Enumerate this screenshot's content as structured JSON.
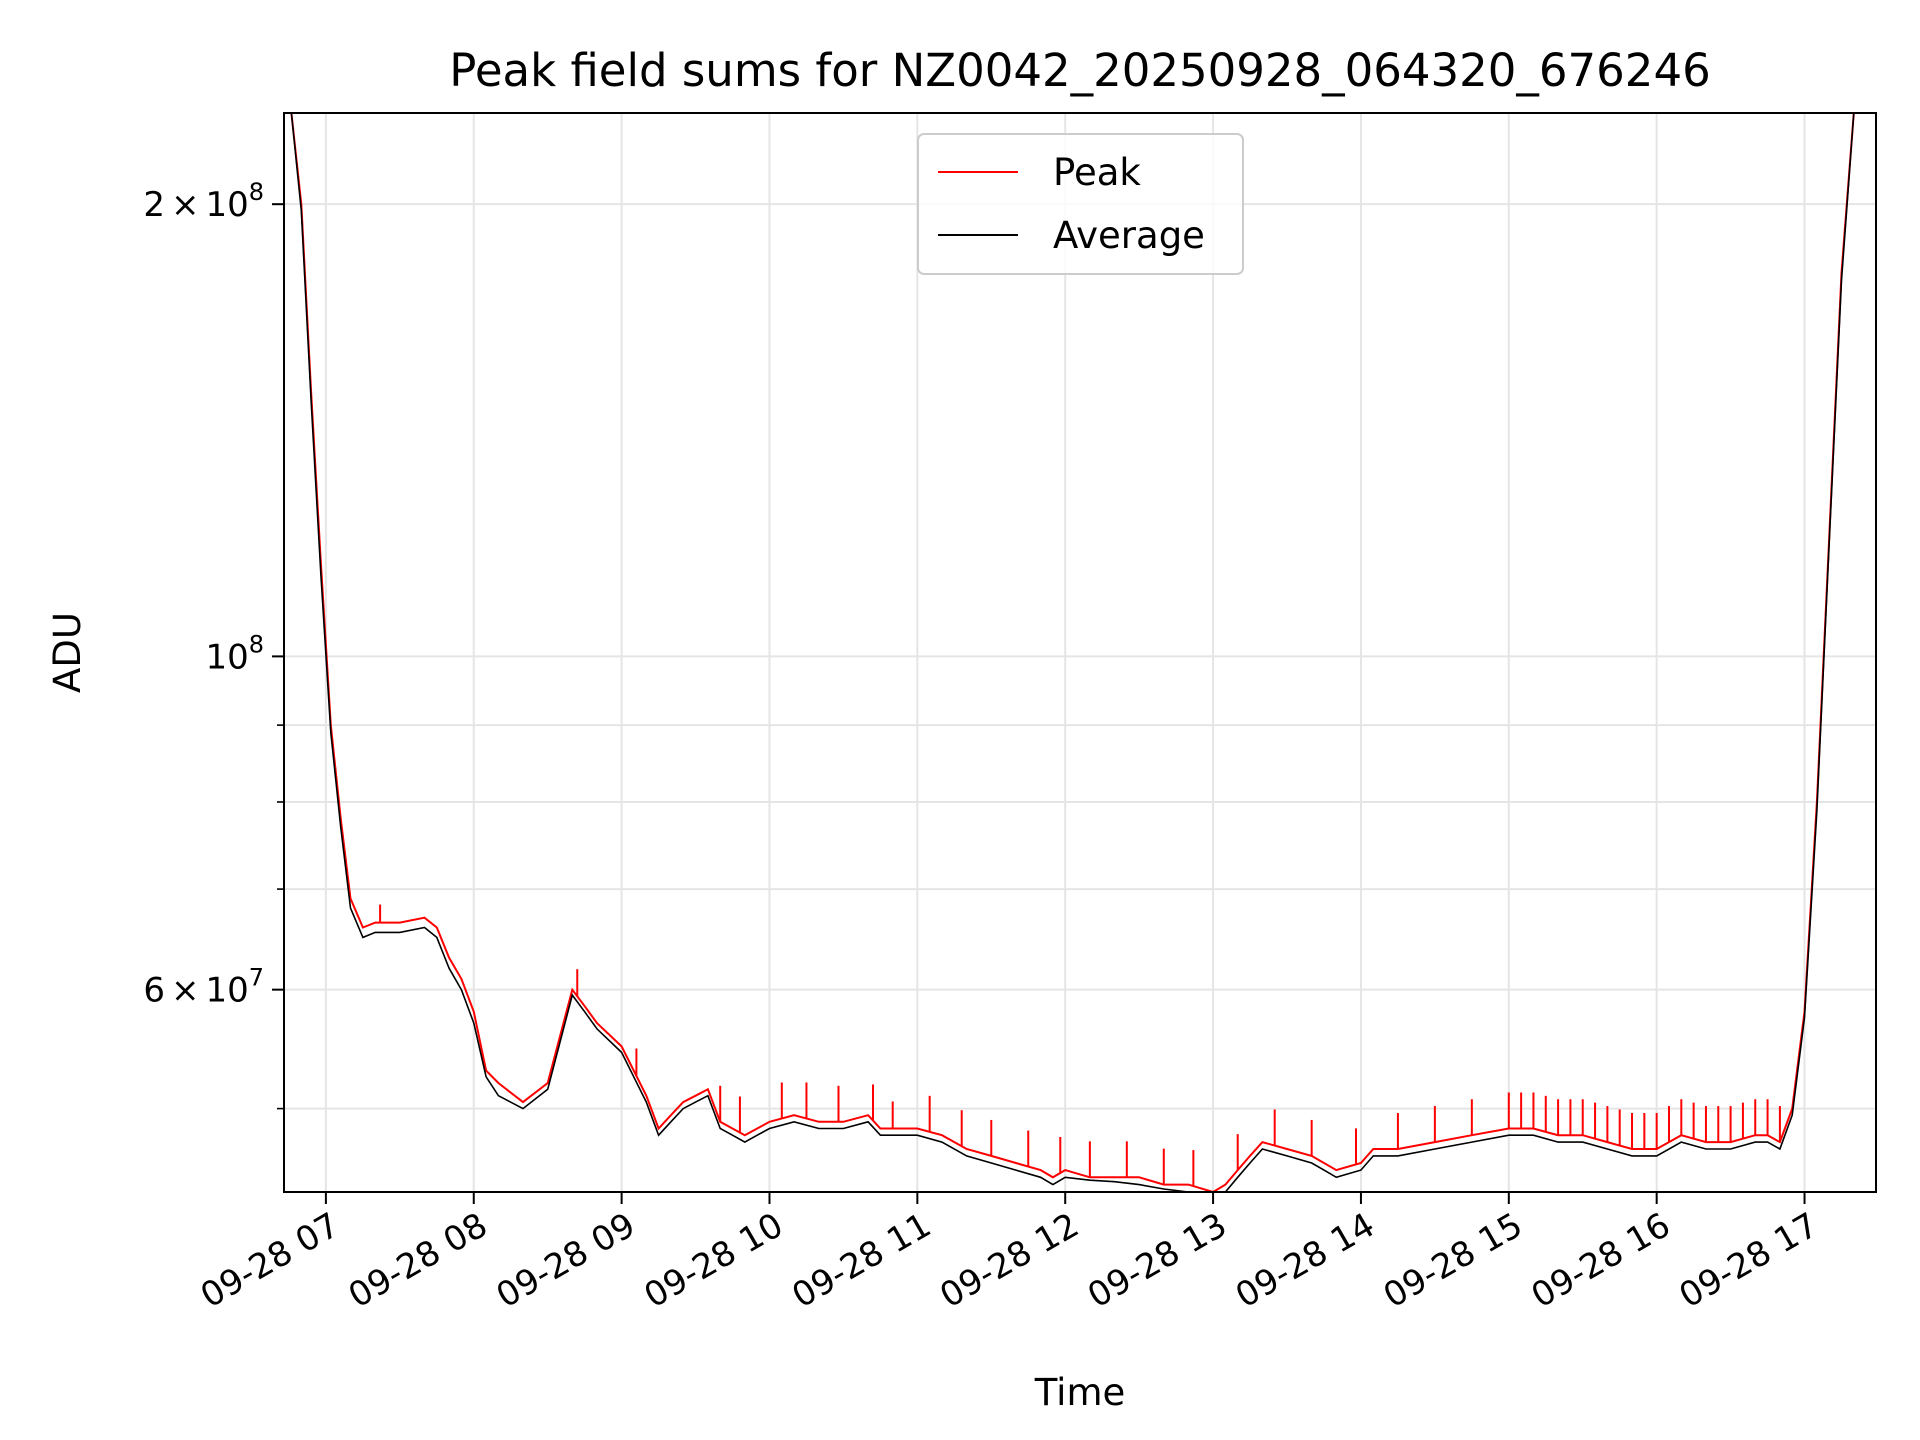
{
  "chart_data": {
    "type": "line",
    "title": "Peak field sums for NZ0042_20250928_064320_676246",
    "xlabel": "Time",
    "ylabel": "ADU",
    "y_scale": "log",
    "ylim": [
      44000000,
      230000000
    ],
    "xlim": [
      "2025-09-28 06:43",
      "2025-09-28 17:29"
    ],
    "grid": true,
    "legend_position": "upper center",
    "x_ticks": [
      {
        "value": "2025-09-28 07:00",
        "label": "09-28 07"
      },
      {
        "value": "2025-09-28 08:00",
        "label": "09-28 08"
      },
      {
        "value": "2025-09-28 09:00",
        "label": "09-28 09"
      },
      {
        "value": "2025-09-28 10:00",
        "label": "09-28 10"
      },
      {
        "value": "2025-09-28 11:00",
        "label": "09-28 11"
      },
      {
        "value": "2025-09-28 12:00",
        "label": "09-28 12"
      },
      {
        "value": "2025-09-28 13:00",
        "label": "09-28 13"
      },
      {
        "value": "2025-09-28 14:00",
        "label": "09-28 14"
      },
      {
        "value": "2025-09-28 15:00",
        "label": "09-28 15"
      },
      {
        "value": "2025-09-28 16:00",
        "label": "09-28 16"
      },
      {
        "value": "2025-09-28 17:00",
        "label": "09-28 17"
      }
    ],
    "y_major_ticks": [
      {
        "value": 200000000,
        "mantissa": "2",
        "times": "×",
        "base": "10",
        "exp": "8"
      },
      {
        "value": 100000000,
        "mantissa": "",
        "times": "",
        "base": "10",
        "exp": "8"
      },
      {
        "value": 60000000,
        "mantissa": "6",
        "times": "×",
        "base": "10",
        "exp": "7"
      }
    ],
    "y_minor_ticks": [
      50000000,
      70000000,
      80000000,
      90000000
    ],
    "series": [
      {
        "name": "Peak",
        "color": "#ff0000",
        "style": "solid",
        "x": [
          "2025-09-28 06:46",
          "2025-09-28 06:50",
          "2025-09-28 06:54",
          "2025-09-28 06:58",
          "2025-09-28 07:02",
          "2025-09-28 07:06",
          "2025-09-28 07:10",
          "2025-09-28 07:15",
          "2025-09-28 07:20",
          "2025-09-28 07:30",
          "2025-09-28 07:40",
          "2025-09-28 07:45",
          "2025-09-28 07:50",
          "2025-09-28 07:55",
          "2025-09-28 08:00",
          "2025-09-28 08:05",
          "2025-09-28 08:10",
          "2025-09-28 08:20",
          "2025-09-28 08:30",
          "2025-09-28 08:40",
          "2025-09-28 08:45",
          "2025-09-28 08:50",
          "2025-09-28 09:00",
          "2025-09-28 09:10",
          "2025-09-28 09:15",
          "2025-09-28 09:20",
          "2025-09-28 09:25",
          "2025-09-28 09:30",
          "2025-09-28 09:35",
          "2025-09-28 09:40",
          "2025-09-28 09:45",
          "2025-09-28 09:50",
          "2025-09-28 09:55",
          "2025-09-28 10:00",
          "2025-09-28 10:10",
          "2025-09-28 10:20",
          "2025-09-28 10:30",
          "2025-09-28 10:40",
          "2025-09-28 10:45",
          "2025-09-28 10:50",
          "2025-09-28 11:00",
          "2025-09-28 11:10",
          "2025-09-28 11:20",
          "2025-09-28 11:30",
          "2025-09-28 11:40",
          "2025-09-28 11:50",
          "2025-09-28 11:55",
          "2025-09-28 12:00",
          "2025-09-28 12:10",
          "2025-09-28 12:20",
          "2025-09-28 12:30",
          "2025-09-28 12:40",
          "2025-09-28 12:50",
          "2025-09-28 13:00",
          "2025-09-28 13:05",
          "2025-09-28 13:10",
          "2025-09-28 13:15",
          "2025-09-28 13:20",
          "2025-09-28 13:30",
          "2025-09-28 13:40",
          "2025-09-28 13:45",
          "2025-09-28 13:50",
          "2025-09-28 14:00",
          "2025-09-28 14:05",
          "2025-09-28 14:15",
          "2025-09-28 14:30",
          "2025-09-28 14:45",
          "2025-09-28 15:00",
          "2025-09-28 15:10",
          "2025-09-28 15:20",
          "2025-09-28 15:30",
          "2025-09-28 15:40",
          "2025-09-28 15:50",
          "2025-09-28 16:00",
          "2025-09-28 16:10",
          "2025-09-28 16:20",
          "2025-09-28 16:30",
          "2025-09-28 16:40",
          "2025-09-28 16:45",
          "2025-09-28 16:50",
          "2025-09-28 16:55",
          "2025-09-28 17:00",
          "2025-09-28 17:05",
          "2025-09-28 17:10",
          "2025-09-28 17:15",
          "2025-09-28 17:20"
        ],
        "y": [
          230000000,
          200000000,
          150000000,
          115000000,
          90000000,
          78000000,
          69000000,
          66000000,
          66500000,
          66500000,
          67000000,
          66000000,
          63000000,
          61000000,
          58000000,
          53000000,
          52000000,
          50500000,
          52000000,
          60000000,
          58500000,
          57000000,
          55000000,
          51000000,
          48500000,
          49500000,
          50500000,
          51000000,
          51500000,
          49000000,
          48500000,
          48000000,
          48500000,
          49000000,
          49500000,
          49000000,
          49000000,
          49500000,
          48500000,
          48500000,
          48500000,
          48000000,
          47000000,
          46500000,
          46000000,
          45500000,
          45000000,
          45500000,
          45000000,
          45000000,
          45000000,
          44500000,
          44500000,
          44000000,
          44500000,
          45500000,
          46500000,
          47500000,
          47000000,
          46500000,
          46000000,
          45500000,
          46000000,
          47000000,
          47000000,
          47500000,
          48000000,
          48500000,
          48500000,
          48000000,
          48000000,
          47500000,
          47000000,
          47000000,
          48000000,
          47500000,
          47500000,
          48000000,
          48000000,
          47500000,
          50000000,
          58000000,
          80000000,
          120000000,
          180000000,
          230000000
        ],
        "spike_times": [
          "2025-09-28 07:22",
          "2025-09-28 08:42",
          "2025-09-28 09:06",
          "2025-09-28 09:40",
          "2025-09-28 09:48",
          "2025-09-28 10:05",
          "2025-09-28 10:15",
          "2025-09-28 10:28",
          "2025-09-28 10:42",
          "2025-09-28 10:50",
          "2025-09-28 11:05",
          "2025-09-28 11:18",
          "2025-09-28 11:30",
          "2025-09-28 11:45",
          "2025-09-28 11:58",
          "2025-09-28 12:10",
          "2025-09-28 12:25",
          "2025-09-28 12:40",
          "2025-09-28 12:52",
          "2025-09-28 13:10",
          "2025-09-28 13:25",
          "2025-09-28 13:40",
          "2025-09-28 13:58",
          "2025-09-28 14:15",
          "2025-09-28 14:30",
          "2025-09-28 14:45",
          "2025-09-28 15:00",
          "2025-09-28 15:05",
          "2025-09-28 15:10",
          "2025-09-28 15:15",
          "2025-09-28 15:20",
          "2025-09-28 15:25",
          "2025-09-28 15:30",
          "2025-09-28 15:35",
          "2025-09-28 15:40",
          "2025-09-28 15:45",
          "2025-09-28 15:50",
          "2025-09-28 15:55",
          "2025-09-28 16:00",
          "2025-09-28 16:05",
          "2025-09-28 16:10",
          "2025-09-28 16:15",
          "2025-09-28 16:20",
          "2025-09-28 16:25",
          "2025-09-28 16:30",
          "2025-09-28 16:35",
          "2025-09-28 16:40",
          "2025-09-28 16:45",
          "2025-09-28 16:50"
        ],
        "spike_heights": [
          1,
          1.5,
          1.5,
          2,
          2,
          2,
          2,
          2,
          2,
          1.5,
          2,
          2,
          2,
          2,
          2,
          2,
          2,
          2,
          2,
          2,
          2,
          2,
          2,
          2,
          2,
          2,
          2,
          2,
          2,
          2,
          2,
          2,
          2,
          2,
          2,
          2,
          2,
          2,
          2,
          2,
          2,
          2,
          2,
          2,
          2,
          2,
          2,
          2,
          2
        ]
      },
      {
        "name": "Average",
        "color": "#000000",
        "style": "solid",
        "x": [
          "2025-09-28 06:46",
          "2025-09-28 06:50",
          "2025-09-28 06:54",
          "2025-09-28 06:58",
          "2025-09-28 07:02",
          "2025-09-28 07:06",
          "2025-09-28 07:10",
          "2025-09-28 07:15",
          "2025-09-28 07:20",
          "2025-09-28 07:30",
          "2025-09-28 07:40",
          "2025-09-28 07:45",
          "2025-09-28 07:50",
          "2025-09-28 07:55",
          "2025-09-28 08:00",
          "2025-09-28 08:05",
          "2025-09-28 08:10",
          "2025-09-28 08:20",
          "2025-09-28 08:30",
          "2025-09-28 08:40",
          "2025-09-28 08:45",
          "2025-09-28 08:50",
          "2025-09-28 09:00",
          "2025-09-28 09:10",
          "2025-09-28 09:15",
          "2025-09-28 09:20",
          "2025-09-28 09:25",
          "2025-09-28 09:30",
          "2025-09-28 09:35",
          "2025-09-28 09:40",
          "2025-09-28 09:45",
          "2025-09-28 09:50",
          "2025-09-28 09:55",
          "2025-09-28 10:00",
          "2025-09-28 10:10",
          "2025-09-28 10:20",
          "2025-09-28 10:30",
          "2025-09-28 10:40",
          "2025-09-28 10:45",
          "2025-09-28 10:50",
          "2025-09-28 11:00",
          "2025-09-28 11:10",
          "2025-09-28 11:20",
          "2025-09-28 11:30",
          "2025-09-28 11:40",
          "2025-09-28 11:50",
          "2025-09-28 11:55",
          "2025-09-28 12:00",
          "2025-09-28 12:10",
          "2025-09-28 12:20",
          "2025-09-28 12:30",
          "2025-09-28 12:40",
          "2025-09-28 12:50",
          "2025-09-28 13:00",
          "2025-09-28 13:05",
          "2025-09-28 13:10",
          "2025-09-28 13:15",
          "2025-09-28 13:20",
          "2025-09-28 13:30",
          "2025-09-28 13:40",
          "2025-09-28 13:45",
          "2025-09-28 13:50",
          "2025-09-28 14:00",
          "2025-09-28 14:05",
          "2025-09-28 14:15",
          "2025-09-28 14:30",
          "2025-09-28 14:45",
          "2025-09-28 15:00",
          "2025-09-28 15:10",
          "2025-09-28 15:20",
          "2025-09-28 15:30",
          "2025-09-28 15:40",
          "2025-09-28 15:50",
          "2025-09-28 16:00",
          "2025-09-28 16:10",
          "2025-09-28 16:20",
          "2025-09-28 16:30",
          "2025-09-28 16:40",
          "2025-09-28 16:45",
          "2025-09-28 16:50",
          "2025-09-28 16:55",
          "2025-09-28 17:00",
          "2025-09-28 17:05",
          "2025-09-28 17:10",
          "2025-09-28 17:15",
          "2025-09-28 17:20"
        ],
        "y": [
          230000000,
          198000000,
          148000000,
          113000000,
          89000000,
          77000000,
          68000000,
          65000000,
          65500000,
          65500000,
          66000000,
          65000000,
          62000000,
          60000000,
          57000000,
          52500000,
          51000000,
          50000000,
          51500000,
          59500000,
          58000000,
          56500000,
          54500000,
          50500000,
          48000000,
          49000000,
          50000000,
          50500000,
          51000000,
          48500000,
          48000000,
          47500000,
          48000000,
          48500000,
          49000000,
          48500000,
          48500000,
          49000000,
          48000000,
          48000000,
          48000000,
          47500000,
          46500000,
          46000000,
          45500000,
          45000000,
          44500000,
          45000000,
          44800000,
          44700000,
          44500000,
          44200000,
          44000000,
          43800000,
          44000000,
          45000000,
          46000000,
          47000000,
          46500000,
          46000000,
          45500000,
          45000000,
          45500000,
          46500000,
          46500000,
          47000000,
          47500000,
          48000000,
          48000000,
          47500000,
          47500000,
          47000000,
          46500000,
          46500000,
          47500000,
          47000000,
          47000000,
          47500000,
          47500000,
          47000000,
          49500000,
          57500000,
          79000000,
          119000000,
          178000000,
          230000000
        ]
      }
    ]
  }
}
